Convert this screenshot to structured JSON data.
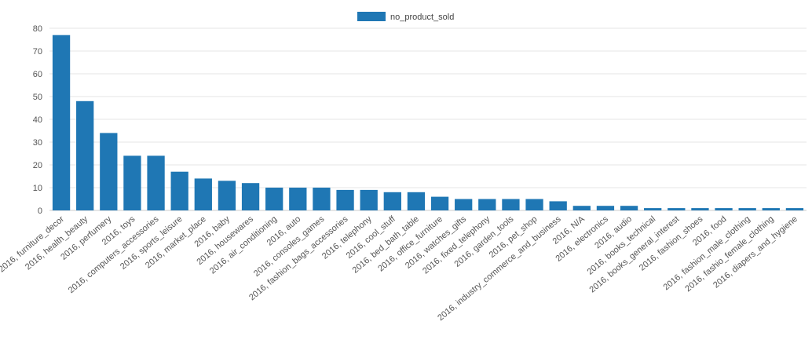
{
  "chart_data": {
    "type": "bar",
    "legend": {
      "position": "top-center"
    },
    "grid": true,
    "ylim": [
      0,
      80
    ],
    "yticks": [
      0,
      10,
      20,
      30,
      40,
      50,
      60,
      70,
      80
    ],
    "colors": {
      "bar": "#1f77b4",
      "grid": "#e5e5e5",
      "axis": "#cccccc"
    },
    "categories": [
      "2016, furniture_decor",
      "2016, health_beauty",
      "2016, perfumery",
      "2016, toys",
      "2016, computers_accessories",
      "2016, sports_leisure",
      "2016, market_place",
      "2016, baby",
      "2016, housewares",
      "2016, air_conditioning",
      "2016, auto",
      "2016, consoles_games",
      "2016, fashion_bags_accessories",
      "2016, telephony",
      "2016, cool_stuff",
      "2016, bed_bath_table",
      "2016, office_furniture",
      "2016, watches_gifts",
      "2016, fixed_telephony",
      "2016, garden_tools",
      "2016, pet_shop",
      "2016, industry_commerce_and_business",
      "2016, N/A",
      "2016, electronics",
      "2016, audio",
      "2016, books_technical",
      "2016, books_general_interest",
      "2016, fashion_shoes",
      "2016, food",
      "2016, fashion_male_clothing",
      "2016, fashio_female_clothing",
      "2016, diapers_and_hygiene"
    ],
    "series": [
      {
        "name": "no_product_sold",
        "values": [
          77,
          48,
          34,
          24,
          24,
          17,
          14,
          13,
          12,
          10,
          10,
          10,
          9,
          9,
          8,
          8,
          6,
          5,
          5,
          5,
          5,
          4,
          2,
          2,
          2,
          1,
          1,
          1,
          1,
          1,
          1,
          1
        ]
      }
    ]
  }
}
